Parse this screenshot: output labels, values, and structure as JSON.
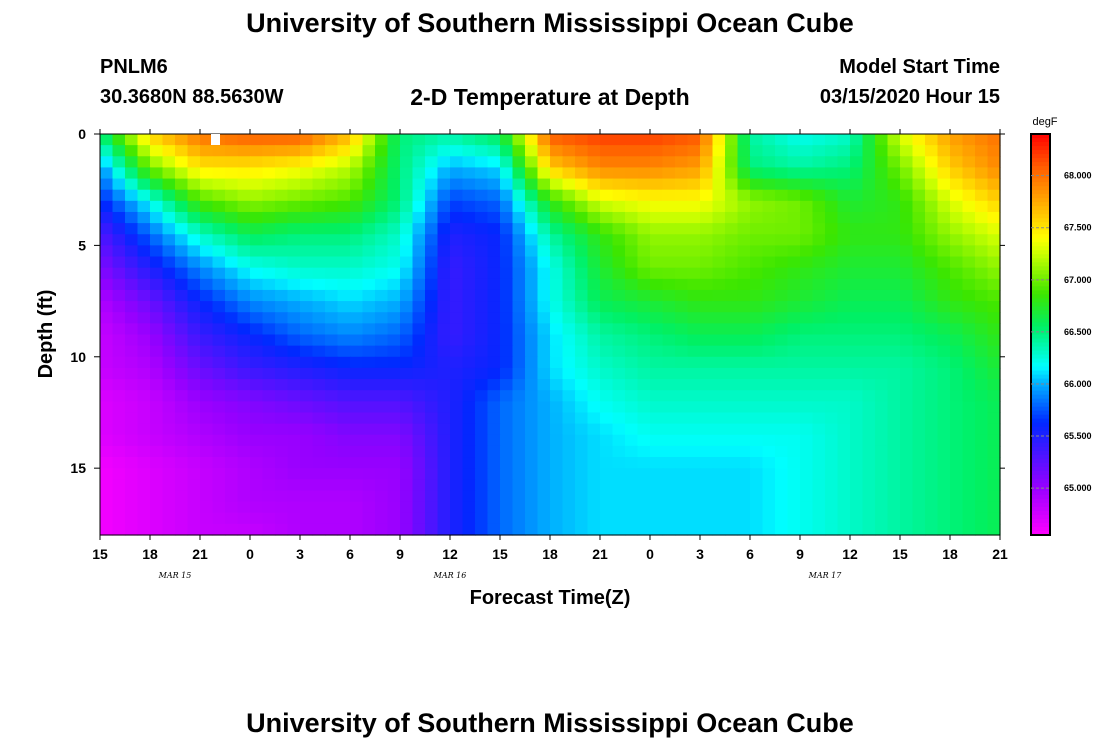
{
  "header": {
    "title": "University of Southern Mississippi Ocean Cube",
    "station": "PNLM6",
    "coords": "30.3680N 88.5630W",
    "subtitle": "2-D Temperature at Depth",
    "model_start_label": "Model Start Time",
    "model_start_value": "03/15/2020 Hour 15"
  },
  "footer": {
    "title": "University of Southern Mississippi Ocean Cube"
  },
  "chart_data": {
    "type": "heatmap",
    "xlabel": "Forecast Time(Z)",
    "ylabel": "Depth (ft)",
    "x_tick_labels": [
      "15",
      "18",
      "21",
      "0",
      "3",
      "6",
      "9",
      "12",
      "15",
      "18",
      "21",
      "0",
      "3",
      "6",
      "9",
      "12",
      "15",
      "18",
      "21"
    ],
    "x_date_labels": [
      {
        "label": "MAR 15",
        "hour_index": 4.5
      },
      {
        "label": "MAR 16",
        "hour_index": 21
      },
      {
        "label": "MAR 17",
        "hour_index": 43.5
      }
    ],
    "x_range_hours": [
      0,
      54
    ],
    "y_ticks": [
      0,
      5,
      10,
      15
    ],
    "y_range": [
      0,
      18
    ],
    "colorbar": {
      "unit": "degF",
      "range": [
        64.55,
        68.4
      ],
      "ticks": [
        "65.000",
        "65.500",
        "66.000",
        "66.500",
        "67.000",
        "67.500",
        "68.000"
      ],
      "tick_values": [
        65.0,
        65.5,
        66.0,
        66.5,
        67.0,
        67.5,
        68.0
      ]
    },
    "depths": [
      0,
      1.5,
      3,
      4.5,
      6,
      7.5,
      9,
      10.5,
      12,
      13.5,
      15,
      16.5,
      18
    ],
    "hours": [
      0,
      3,
      6,
      9,
      12,
      15,
      18,
      21,
      24,
      27,
      30,
      33,
      36,
      39,
      42,
      45,
      48,
      51,
      54
    ],
    "values": [
      [
        66.5,
        67.6,
        68.0,
        68.1,
        68.1,
        67.7,
        66.5,
        66.4,
        66.6,
        68.1,
        68.2,
        68.2,
        68.1,
        66.4,
        66.2,
        66.3,
        67.3,
        67.8,
        68.0
      ],
      [
        65.9,
        67.0,
        67.5,
        67.5,
        67.4,
        67.2,
        66.5,
        66.0,
        66.1,
        67.6,
        67.9,
        67.9,
        67.8,
        66.5,
        66.4,
        66.5,
        67.0,
        67.6,
        67.9
      ],
      [
        65.6,
        66.2,
        66.9,
        67.1,
        67.0,
        66.9,
        66.5,
        65.7,
        65.8,
        66.8,
        67.3,
        67.4,
        67.4,
        67.1,
        67.0,
        66.7,
        66.8,
        67.3,
        67.6
      ],
      [
        65.3,
        65.8,
        66.3,
        66.6,
        66.5,
        66.5,
        66.3,
        65.5,
        65.6,
        66.4,
        66.8,
        67.1,
        67.1,
        67.0,
        67.0,
        66.8,
        66.8,
        67.1,
        67.3
      ],
      [
        65.1,
        65.5,
        65.9,
        66.2,
        66.3,
        66.3,
        66.2,
        65.4,
        65.6,
        66.2,
        66.7,
        67.0,
        67.0,
        66.9,
        66.8,
        66.7,
        66.7,
        66.9,
        67.1
      ],
      [
        64.9,
        65.2,
        65.6,
        65.9,
        66.0,
        66.1,
        66.0,
        65.4,
        65.6,
        66.2,
        66.6,
        66.7,
        66.8,
        66.8,
        66.7,
        66.6,
        66.6,
        66.8,
        66.9
      ],
      [
        64.8,
        65.0,
        65.4,
        65.6,
        65.8,
        65.9,
        65.8,
        65.4,
        65.6,
        66.1,
        66.4,
        66.5,
        66.6,
        66.6,
        66.5,
        66.5,
        66.5,
        66.6,
        66.8
      ],
      [
        64.8,
        64.9,
        65.2,
        65.4,
        65.5,
        65.6,
        65.6,
        65.5,
        65.6,
        66.1,
        66.3,
        66.4,
        66.4,
        66.4,
        66.4,
        66.4,
        66.4,
        66.5,
        66.7
      ],
      [
        64.7,
        64.8,
        65.0,
        65.1,
        65.2,
        65.3,
        65.3,
        65.5,
        65.8,
        66.0,
        66.2,
        66.3,
        66.3,
        66.3,
        66.3,
        66.3,
        66.4,
        66.5,
        66.6
      ],
      [
        64.7,
        64.8,
        64.9,
        65.0,
        65.0,
        65.1,
        65.1,
        65.5,
        65.8,
        66.0,
        66.1,
        66.2,
        66.2,
        66.2,
        66.2,
        66.3,
        66.4,
        66.5,
        66.6
      ],
      [
        64.6,
        64.7,
        64.8,
        64.9,
        65.0,
        65.0,
        65.0,
        65.5,
        65.8,
        66.0,
        66.1,
        66.1,
        66.1,
        66.1,
        66.2,
        66.3,
        66.4,
        66.5,
        66.6
      ],
      [
        64.6,
        64.7,
        64.8,
        64.9,
        64.9,
        64.9,
        65.0,
        65.5,
        65.8,
        66.0,
        66.1,
        66.1,
        66.1,
        66.1,
        66.2,
        66.3,
        66.4,
        66.5,
        66.6
      ],
      [
        64.6,
        64.7,
        64.8,
        64.8,
        64.9,
        64.9,
        65.0,
        65.5,
        65.8,
        66.0,
        66.1,
        66.1,
        66.1,
        66.1,
        66.2,
        66.3,
        66.4,
        66.5,
        66.6
      ]
    ]
  }
}
